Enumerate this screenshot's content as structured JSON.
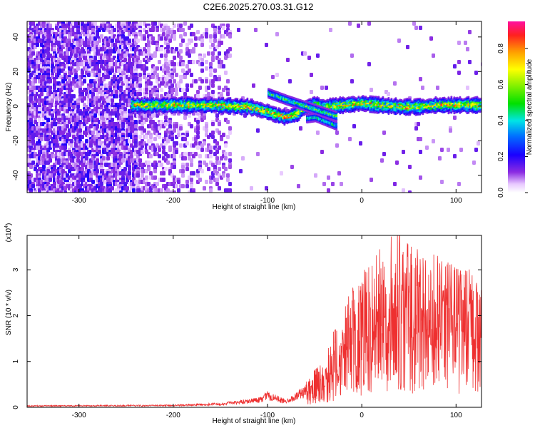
{
  "title": "C2E6.2025.270.03.31.G12",
  "colorbar": {
    "label": "Normalized spectral amplitude",
    "ticks": [
      "0.0",
      "0.2",
      "0.4",
      "0.6",
      "0.8"
    ]
  },
  "chart_data": [
    {
      "type": "heatmap",
      "name": "spectrogram",
      "xlabel": "Height of straight line (km)",
      "ylabel": "Frequency (Hz)",
      "xlim": [
        -355,
        127
      ],
      "ylim": [
        -50,
        49
      ],
      "xticks": [
        -300,
        -200,
        -100,
        0,
        100
      ],
      "xtick_labels": [
        "-300",
        "-200",
        "-100",
        "0",
        "100"
      ],
      "yticks": [
        -40,
        -20,
        0,
        20,
        40
      ],
      "ytick_labels": [
        "-40",
        "-20",
        "0",
        "20",
        "40"
      ],
      "colorscale_range": [
        0,
        0.95
      ],
      "signal_trace": {
        "description_points_x": [
          -240,
          -200,
          -160,
          -120,
          -100,
          -90,
          -80,
          -70,
          -60,
          -50,
          -40,
          -20,
          0,
          20,
          40,
          60,
          80,
          100,
          127
        ],
        "frequency_hz": [
          1,
          1,
          1,
          0,
          -3,
          -5,
          -6,
          -4,
          0,
          1,
          0,
          1,
          2,
          1,
          0,
          0,
          1,
          1,
          1
        ]
      },
      "noise_region_x": [
        -355,
        -140
      ]
    },
    {
      "type": "line",
      "name": "snr",
      "xlabel": "Height of straight line (km)",
      "ylabel": "SNR (10 * v/v)",
      "yscale_label": "(x10",
      "yscale_exponent": "4",
      "xlim": [
        -355,
        127
      ],
      "ylim": [
        0,
        3.75
      ],
      "xticks": [
        -300,
        -200,
        -100,
        0,
        100
      ],
      "xtick_labels": [
        "-300",
        "-200",
        "-100",
        "0",
        "100"
      ],
      "yticks": [
        0,
        1,
        2,
        3
      ],
      "ytick_labels": [
        "0",
        "1",
        "2",
        "3"
      ],
      "color": "#ee3030",
      "envelope": {
        "x": [
          -355,
          -200,
          -150,
          -110,
          -100,
          -80,
          -60,
          -40,
          -30,
          -20,
          -10,
          0,
          10,
          20,
          30,
          40,
          50,
          60,
          80,
          100,
          127
        ],
        "y": [
          0.03,
          0.04,
          0.07,
          0.15,
          0.25,
          0.12,
          0.35,
          0.55,
          0.9,
          1.1,
          1.5,
          1.6,
          1.7,
          1.9,
          2.1,
          2.2,
          2.0,
          1.9,
          1.8,
          1.7,
          1.6
        ]
      },
      "peak": {
        "x": 40,
        "y": 3.75
      }
    }
  ]
}
